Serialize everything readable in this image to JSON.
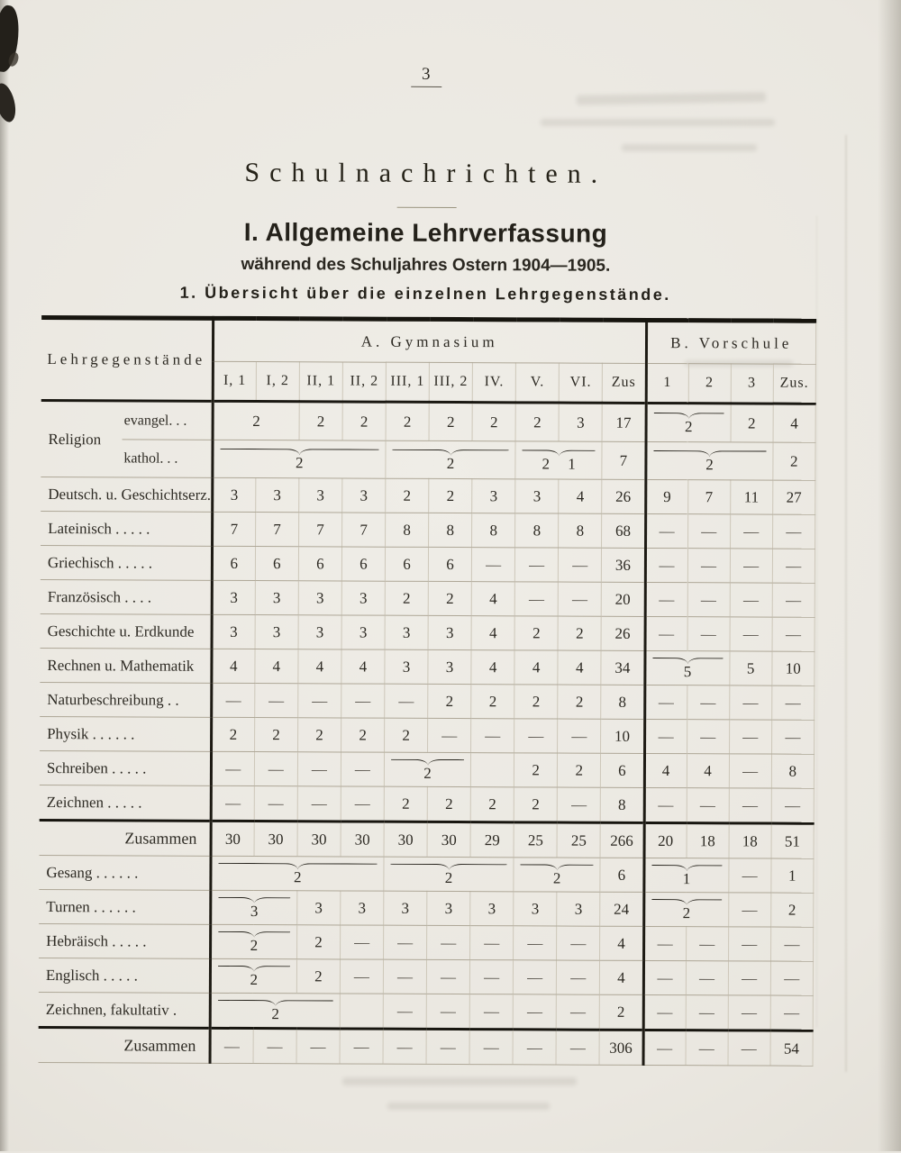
{
  "page": {
    "number": "3"
  },
  "titles": {
    "main": "Schulnachrichten.",
    "section": "I. Allgemeine Lehrverfassung",
    "subtitle": "während des Schuljahres Ostern 1904—1905.",
    "caption": "1. Übersicht über die einzelnen Lehrgegenstände."
  },
  "table": {
    "label_header": "Lehrgegenstände",
    "group_a": "A. Gymnasium",
    "group_b": "B. Vorschule",
    "gym_cols": [
      "I, 1",
      "I, 2",
      "II, 1",
      "II, 2",
      "III, 1",
      "III, 2",
      "IV.",
      "V.",
      "VI.",
      "Zus"
    ],
    "vor_cols": [
      "1",
      "2",
      "3",
      "Zus."
    ],
    "religion": {
      "main": "Religion",
      "sub_evangel": "evangel. .  .",
      "sub_kathol": "kathol. .  ."
    },
    "rows": [
      {
        "religion": true,
        "g": [
          {
            "v": "2",
            "s": 2
          },
          "2",
          "2",
          "2",
          "2",
          "2",
          "2",
          "3",
          "17"
        ],
        "vor": [
          {
            "v": "2",
            "s": 2,
            "b": true
          },
          "2",
          "4"
        ]
      },
      {
        "nolabel": true,
        "g": [
          {
            "v": "2",
            "s": 4,
            "b": true
          },
          {
            "v": "2",
            "s": 3,
            "b": true
          },
          {
            "v": "2 1",
            "s": 2,
            "b": true
          },
          "7"
        ],
        "vor": [
          {
            "v": "2",
            "s": 3,
            "b": true
          },
          "2"
        ]
      },
      {
        "label": "Deutsch. u. Geschichtserz.",
        "g": [
          "3",
          "3",
          "3",
          "3",
          "2",
          "2",
          "3",
          "3",
          "4",
          "26"
        ],
        "vor": [
          "9",
          "7",
          "11",
          "27"
        ]
      },
      {
        "label": "Lateinisch  .  .  .  .  .",
        "g": [
          "7",
          "7",
          "7",
          "7",
          "8",
          "8",
          "8",
          "8",
          "8",
          "68"
        ],
        "vor": [
          "—",
          "—",
          "—",
          "—"
        ]
      },
      {
        "label": "Griechisch  .  .  .  .  .",
        "g": [
          "6",
          "6",
          "6",
          "6",
          "6",
          "6",
          "—",
          "—",
          "—",
          "36"
        ],
        "vor": [
          "—",
          "—",
          "—",
          "—"
        ]
      },
      {
        "label": "Französisch   .  .  .  .",
        "g": [
          "3",
          "3",
          "3",
          "3",
          "2",
          "2",
          "4",
          "—",
          "—",
          "20"
        ],
        "vor": [
          "—",
          "—",
          "—",
          "—"
        ]
      },
      {
        "label": "Geschichte u. Erdkunde",
        "g": [
          "3",
          "3",
          "3",
          "3",
          "3",
          "3",
          "4",
          "2",
          "2",
          "26"
        ],
        "vor": [
          "—",
          "—",
          "—",
          "—"
        ]
      },
      {
        "label": "Rechnen u. Mathematik",
        "g": [
          "4",
          "4",
          "4",
          "4",
          "3",
          "3",
          "4",
          "4",
          "4",
          "34"
        ],
        "vor": [
          {
            "v": "5",
            "s": 2,
            "b": true
          },
          "5",
          "10"
        ]
      },
      {
        "label": "Naturbeschreibung  .  .",
        "g": [
          "—",
          "—",
          "—",
          "—",
          "—",
          "2",
          "2",
          "2",
          "2",
          "8"
        ],
        "vor": [
          "—",
          "—",
          "—",
          "—"
        ]
      },
      {
        "label": "Physik  .  .  .  .  .  .",
        "g": [
          "2",
          "2",
          "2",
          "2",
          "2",
          "—",
          "—",
          "—",
          "—",
          "10"
        ],
        "vor": [
          "—",
          "—",
          "—",
          "—"
        ]
      },
      {
        "label": "Schreiben  .  .  .  .  .",
        "g": [
          "—",
          "—",
          "—",
          "—",
          {
            "v": "2",
            "s": 2,
            "b": true
          },
          "",
          "2",
          "2",
          "6"
        ],
        "vor": [
          "4",
          "4",
          "—",
          "8"
        ]
      },
      {
        "label": "Zeichnen  .  .  .  .  .",
        "g": [
          "—",
          "—",
          "—",
          "—",
          "2",
          "2",
          "2",
          "2",
          "—",
          "8"
        ],
        "vor": [
          "—",
          "—",
          "—",
          "—"
        ]
      },
      {
        "label": "Zusammen",
        "right": true,
        "heavy": true,
        "g": [
          "30",
          "30",
          "30",
          "30",
          "30",
          "30",
          "29",
          "25",
          "25",
          "266"
        ],
        "vor": [
          "20",
          "18",
          "18",
          "51"
        ]
      },
      {
        "label": "Gesang  .  .  .  .  .  .",
        "g": [
          {
            "v": "2",
            "s": 4,
            "b": true
          },
          {
            "v": "2",
            "s": 3,
            "b": true
          },
          {
            "v": "2",
            "s": 2,
            "b": true
          },
          "6"
        ],
        "vor": [
          {
            "v": "1",
            "s": 2,
            "b": true
          },
          "—",
          "1"
        ]
      },
      {
        "label": "Turnen  .  .  .  .  .  .",
        "g": [
          {
            "v": "3",
            "s": 2,
            "b": true
          },
          "3",
          "3",
          "3",
          "3",
          "3",
          "3",
          "3",
          "24"
        ],
        "vor": [
          {
            "v": "2",
            "s": 2,
            "b": true
          },
          "—",
          "2"
        ]
      },
      {
        "label": "Hebräisch  .  .  .  .  .",
        "g": [
          {
            "v": "2",
            "s": 2,
            "b": true
          },
          "2",
          "—",
          "—",
          "—",
          "—",
          "—",
          "—",
          "4"
        ],
        "vor": [
          "—",
          "—",
          "—",
          "—"
        ]
      },
      {
        "label": "Englisch   .  .  .  .  .",
        "g": [
          {
            "v": "2",
            "s": 2,
            "b": true
          },
          "2",
          "—",
          "—",
          "—",
          "—",
          "—",
          "—",
          "4"
        ],
        "vor": [
          "—",
          "—",
          "—",
          "—"
        ]
      },
      {
        "label": "Zeichnen, fakultativ   .",
        "g": [
          {
            "v": "2",
            "s": 3,
            "b": true
          },
          "",
          "—",
          "—",
          "—",
          "—",
          "—",
          "2"
        ],
        "vor": [
          "—",
          "—",
          "—",
          "—"
        ]
      },
      {
        "label": "Zusammen",
        "right": true,
        "heavy": true,
        "g": [
          "—",
          "—",
          "—",
          "—",
          "—",
          "—",
          "—",
          "—",
          "—",
          "306"
        ],
        "vor": [
          "—",
          "—",
          "—",
          "54"
        ]
      }
    ]
  }
}
